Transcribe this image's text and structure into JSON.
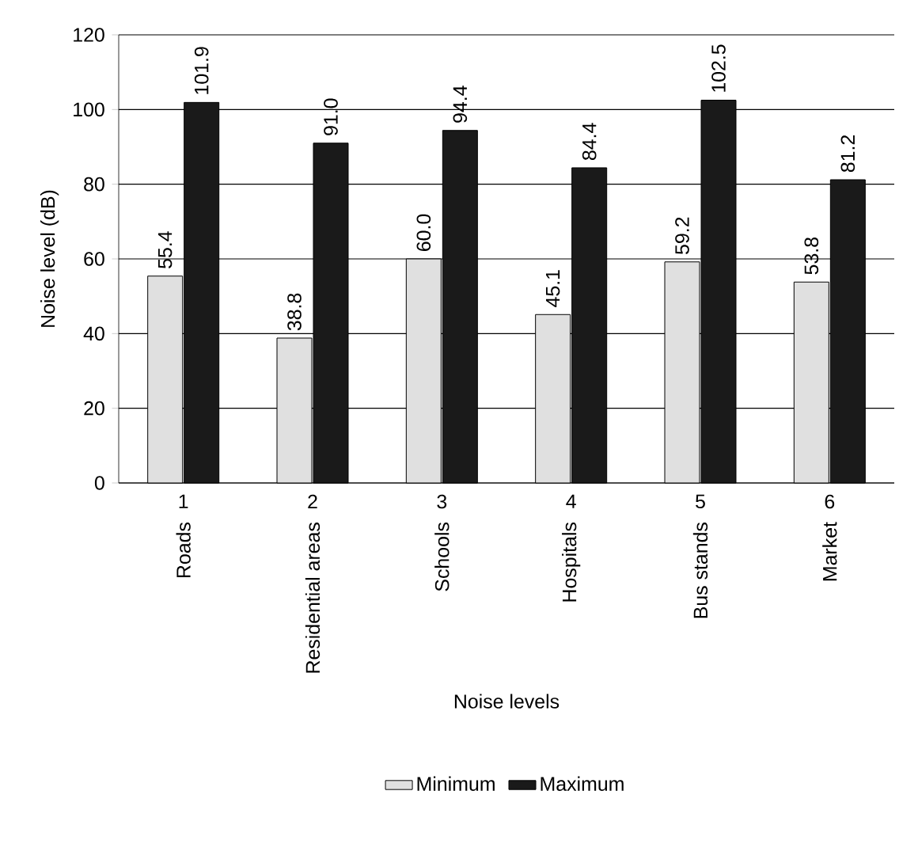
{
  "chart_data": {
    "type": "bar",
    "xlabel": "Noise levels",
    "ylabel": "Noise level (dB)",
    "categories": [
      "Roads",
      "Residential areas",
      "Schools",
      "Hospitals",
      "Bus stands",
      "Market"
    ],
    "annotations": [
      "1",
      "2",
      "3",
      "4",
      "5",
      "6"
    ],
    "series": [
      {
        "name": "Minimum",
        "color": "#e0e0e0",
        "values": [
          55.4,
          38.8,
          60.0,
          45.1,
          59.2,
          53.8
        ],
        "value_labels": [
          "55.4",
          "38.8",
          "60.0",
          "45.1",
          "59.2",
          "53.8"
        ]
      },
      {
        "name": "Maximum",
        "color": "#1a1a1a",
        "values": [
          101.9,
          91.0,
          94.4,
          84.4,
          102.5,
          81.2
        ],
        "value_labels": [
          "101.9",
          "91.0",
          "94.4",
          "84.4",
          "102.5",
          "81.2"
        ]
      }
    ],
    "ylim": [
      0,
      120
    ],
    "yticks": [
      0,
      20,
      40,
      60,
      80,
      100,
      120
    ],
    "grid": "y",
    "legend": "bottom"
  }
}
